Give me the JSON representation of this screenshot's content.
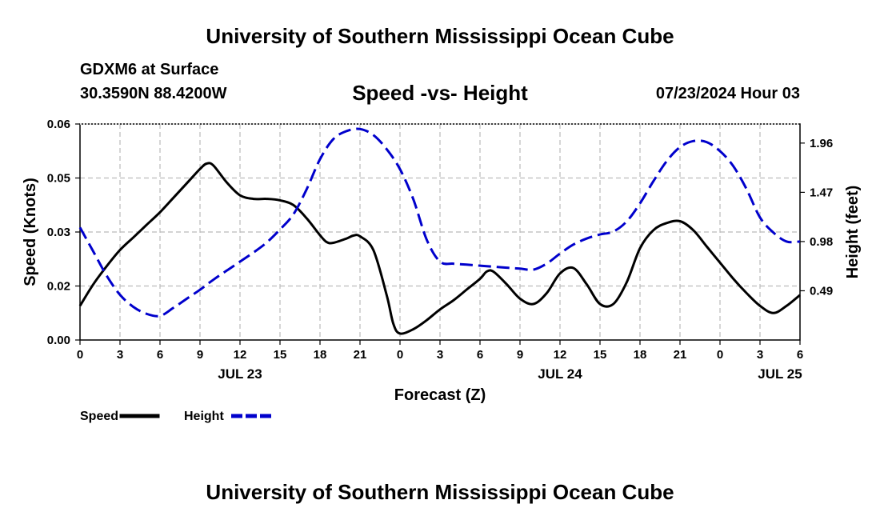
{
  "header": {
    "title": "University of Southern Mississippi Ocean Cube",
    "station": "GDXM6 at Surface",
    "coords": "30.3590N  88.4200W",
    "chart_title": "Speed -vs- Height",
    "datetime": "07/23/2024 Hour 03"
  },
  "footer": {
    "title": "University of Southern Mississippi Ocean Cube"
  },
  "chart_data": {
    "type": "line",
    "title": "Speed -vs- Height",
    "xlabel": "Forecast (Z)",
    "ylabel_left": "Speed (Knots)",
    "ylabel_right": "Height (feet)",
    "x_range": [
      0,
      54
    ],
    "y_left_range": [
      0,
      0.06
    ],
    "y_right_range": [
      0,
      2.15
    ],
    "x_ticks": [
      0,
      3,
      6,
      9,
      12,
      15,
      18,
      21,
      24,
      27,
      30,
      33,
      36,
      39,
      42,
      45,
      48,
      51,
      54
    ],
    "x_tick_labels": [
      "0",
      "3",
      "6",
      "9",
      "12",
      "15",
      "18",
      "21",
      "0",
      "3",
      "6",
      "9",
      "12",
      "15",
      "18",
      "21",
      "0",
      "3",
      "6"
    ],
    "date_labels": [
      {
        "x": 12,
        "label": "JUL 23"
      },
      {
        "x": 36,
        "label": "JUL 24"
      },
      {
        "x": 52.5,
        "label": "JUL 25"
      }
    ],
    "y_left_ticks": [
      0,
      0.015,
      0.03,
      0.045,
      0.06
    ],
    "y_left_tick_labels": [
      "0.00",
      "0.02",
      "0.03",
      "0.05",
      "0.06"
    ],
    "y_right_ticks": [
      0.49,
      0.98,
      1.47,
      1.96
    ],
    "y_right_tick_labels": [
      "0.49",
      "0.98",
      "1.47",
      "1.96"
    ],
    "grid": true,
    "legend_position": "bottom-left",
    "series": [
      {
        "name": "Speed",
        "axis": "left",
        "color": "#000000",
        "dash": "solid",
        "x": [
          0,
          1,
          2,
          3,
          4,
          5,
          6,
          7,
          8,
          9,
          9.5,
          10,
          11,
          12,
          13,
          14,
          15,
          16,
          17,
          18,
          18.5,
          19,
          20,
          20.5,
          21,
          22,
          23,
          23.5,
          24,
          25,
          26,
          27,
          28,
          29,
          30,
          30.5,
          31,
          32,
          33,
          34,
          35,
          36,
          37,
          38,
          39,
          40,
          41,
          42,
          43,
          44,
          45,
          46,
          47,
          48,
          49,
          50,
          51,
          52,
          53,
          54
        ],
        "y": [
          0.0095,
          0.0155,
          0.0205,
          0.025,
          0.0285,
          0.032,
          0.0355,
          0.0395,
          0.0435,
          0.0475,
          0.049,
          0.0485,
          0.0438,
          0.0402,
          0.0392,
          0.0392,
          0.0388,
          0.0375,
          0.0338,
          0.0291,
          0.0272,
          0.027,
          0.0282,
          0.029,
          0.0288,
          0.025,
          0.0125,
          0.0045,
          0.0018,
          0.003,
          0.0055,
          0.0085,
          0.011,
          0.014,
          0.017,
          0.019,
          0.019,
          0.0155,
          0.0115,
          0.01,
          0.013,
          0.0185,
          0.02,
          0.0155,
          0.01,
          0.01,
          0.016,
          0.0255,
          0.0305,
          0.0325,
          0.033,
          0.0305,
          0.026,
          0.0215,
          0.017,
          0.013,
          0.0095,
          0.0075,
          0.0095,
          0.0125
        ]
      },
      {
        "name": "Height",
        "axis": "right",
        "color": "#0000cc",
        "dash": "dashed",
        "x": [
          0,
          1,
          2,
          3,
          4,
          5,
          6,
          7,
          8,
          9,
          10,
          11,
          12,
          13,
          14,
          15,
          16,
          17,
          18,
          19,
          20,
          21,
          22,
          23,
          24,
          25,
          26,
          27,
          28,
          29,
          30,
          31,
          32,
          33,
          34,
          35,
          36,
          37,
          38,
          39,
          40,
          41,
          42,
          43,
          44,
          45,
          46,
          47,
          48,
          49,
          50,
          51,
          52,
          53,
          54
        ],
        "y": [
          1.12,
          0.88,
          0.64,
          0.45,
          0.33,
          0.26,
          0.24,
          0.32,
          0.41,
          0.5,
          0.6,
          0.69,
          0.78,
          0.87,
          0.97,
          1.1,
          1.25,
          1.5,
          1.8,
          2.0,
          2.08,
          2.1,
          2.04,
          1.9,
          1.7,
          1.4,
          1.0,
          0.78,
          0.76,
          0.75,
          0.74,
          0.73,
          0.72,
          0.71,
          0.7,
          0.76,
          0.86,
          0.95,
          1.01,
          1.05,
          1.08,
          1.18,
          1.36,
          1.58,
          1.78,
          1.92,
          1.98,
          1.97,
          1.88,
          1.73,
          1.5,
          1.22,
          1.07,
          0.98,
          0.98
        ]
      }
    ]
  }
}
